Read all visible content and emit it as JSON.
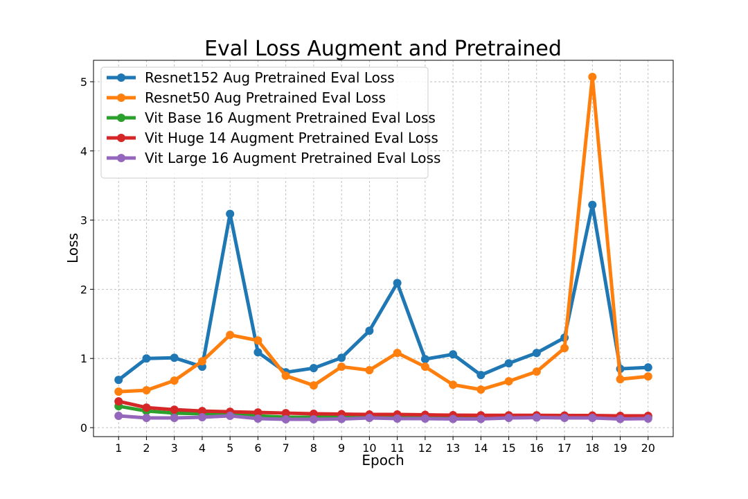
{
  "chart_data": {
    "type": "line",
    "title": "Eval Loss Augment and Pretrained",
    "xlabel": "Epoch",
    "ylabel": "Loss",
    "x": [
      1,
      2,
      3,
      4,
      5,
      6,
      7,
      8,
      9,
      10,
      11,
      12,
      13,
      14,
      15,
      16,
      17,
      18,
      19,
      20
    ],
    "xticks": [
      "1",
      "2",
      "3",
      "4",
      "5",
      "6",
      "7",
      "8",
      "9",
      "10",
      "11",
      "12",
      "13",
      "14",
      "15",
      "16",
      "17",
      "18",
      "19",
      "20"
    ],
    "yticks": [
      "0",
      "1",
      "2",
      "3",
      "4",
      "5"
    ],
    "xlim": [
      0.1,
      20.9
    ],
    "ylim": [
      -0.13,
      5.31
    ],
    "grid": true,
    "legend_position": "top-left",
    "series": [
      {
        "name": "Resnet152 Aug Pretrained Eval Loss",
        "color": "#1f77b4",
        "values": [
          0.69,
          1.0,
          1.01,
          0.88,
          3.09,
          1.09,
          0.8,
          0.86,
          1.01,
          1.4,
          2.09,
          0.99,
          1.06,
          0.76,
          0.93,
          1.08,
          1.3,
          3.22,
          0.85,
          0.87
        ]
      },
      {
        "name": "Resnet50 Aug Pretrained Eval Loss",
        "color": "#ff7f0e",
        "values": [
          0.52,
          0.54,
          0.68,
          0.96,
          1.34,
          1.26,
          0.75,
          0.61,
          0.88,
          0.83,
          1.08,
          0.88,
          0.62,
          0.55,
          0.67,
          0.81,
          1.15,
          5.07,
          0.7,
          0.74
        ]
      },
      {
        "name": "Vit Base 16 Augment Pretrained Eval Loss",
        "color": "#2ca02c",
        "values": [
          0.31,
          0.24,
          0.21,
          0.2,
          0.2,
          0.17,
          0.15,
          0.15,
          0.16,
          0.16,
          0.15,
          0.15,
          0.14,
          0.14,
          0.15,
          0.15,
          0.15,
          0.15,
          0.14,
          0.15
        ]
      },
      {
        "name": "Vit Huge 14 Augment Pretrained Eval Loss",
        "color": "#d62728",
        "values": [
          0.38,
          0.29,
          0.26,
          0.24,
          0.23,
          0.22,
          0.21,
          0.2,
          0.195,
          0.19,
          0.19,
          0.185,
          0.18,
          0.178,
          0.178,
          0.178,
          0.175,
          0.175,
          0.17,
          0.17
        ]
      },
      {
        "name": "Vit Large 16 Augment Pretrained Eval Loss",
        "color": "#9467bd",
        "values": [
          0.17,
          0.14,
          0.14,
          0.15,
          0.17,
          0.13,
          0.12,
          0.12,
          0.125,
          0.14,
          0.13,
          0.13,
          0.125,
          0.125,
          0.14,
          0.145,
          0.14,
          0.14,
          0.125,
          0.13
        ]
      }
    ]
  }
}
